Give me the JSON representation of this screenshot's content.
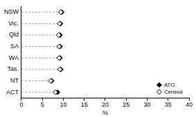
{
  "chart_data": {
    "type": "dot",
    "orientation": "horizontal",
    "categories": [
      "NSW",
      "Vic.",
      "Qld",
      "SA",
      "WA",
      "Tas.",
      "NT",
      "ACT"
    ],
    "series": [
      {
        "name": "ATO",
        "color": "#000000",
        "marker": "diamond",
        "values": [
          9.6,
          9.3,
          9.2,
          9.2,
          9.2,
          9.4,
          7.2,
          8.6
        ]
      },
      {
        "name": "Census",
        "color": "#000000",
        "marker": "open_diamond",
        "values": [
          9.4,
          9.1,
          8.9,
          9.0,
          9.0,
          9.2,
          7.0,
          8.1
        ]
      }
    ],
    "xlabel": "%",
    "xlim": [
      0,
      40
    ],
    "xticks": [
      0,
      5,
      10,
      15,
      20,
      25,
      30,
      35,
      40
    ],
    "grid": false,
    "legend": "lower right"
  }
}
